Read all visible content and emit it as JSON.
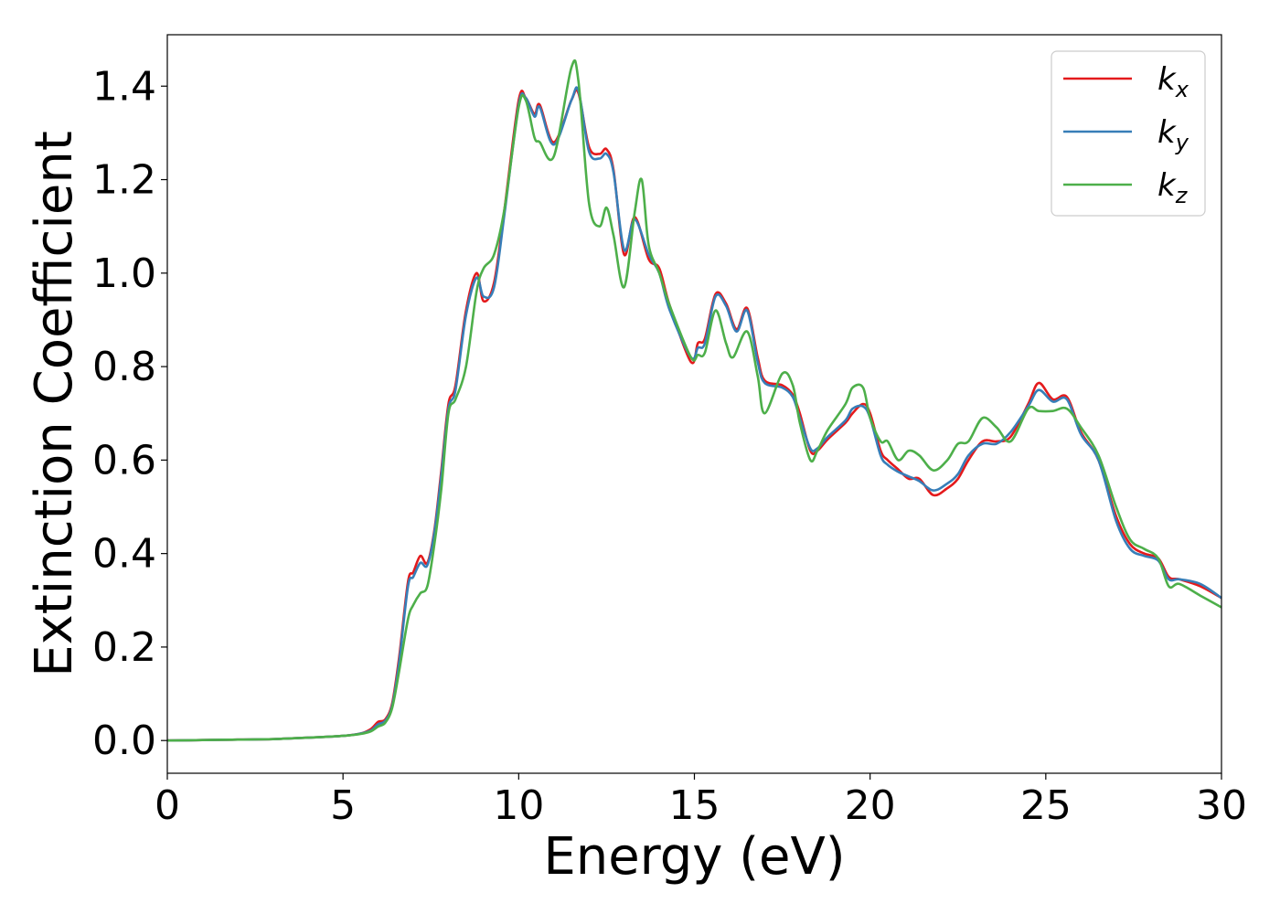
{
  "chart_data": {
    "type": "line",
    "title": "",
    "xlabel": "Energy (eV)",
    "ylabel": "Extinction Coefficient",
    "xlim": [
      0,
      30
    ],
    "ylim": [
      -0.07,
      1.51
    ],
    "x_ticks": [
      "0",
      "5",
      "10",
      "15",
      "20",
      "25",
      "30"
    ],
    "y_ticks": [
      "0.0",
      "0.2",
      "0.4",
      "0.6",
      "0.8",
      "1.0",
      "1.2",
      "1.4"
    ],
    "grid": false,
    "legend_position": "top-right",
    "series": [
      {
        "name": "k",
        "subscript": "x",
        "color": "#e41a1c",
        "points": [
          [
            0,
            0
          ],
          [
            1,
            0.001
          ],
          [
            2,
            0.002
          ],
          [
            3,
            0.003
          ],
          [
            4,
            0.006
          ],
          [
            5,
            0.01
          ],
          [
            5.5,
            0.015
          ],
          [
            5.8,
            0.025
          ],
          [
            6.0,
            0.04
          ],
          [
            6.2,
            0.045
          ],
          [
            6.4,
            0.08
          ],
          [
            6.6,
            0.18
          ],
          [
            6.85,
            0.34
          ],
          [
            7.0,
            0.36
          ],
          [
            7.2,
            0.395
          ],
          [
            7.4,
            0.38
          ],
          [
            7.6,
            0.45
          ],
          [
            7.8,
            0.58
          ],
          [
            8.0,
            0.72
          ],
          [
            8.2,
            0.76
          ],
          [
            8.5,
            0.92
          ],
          [
            8.8,
            1.0
          ],
          [
            9.0,
            0.94
          ],
          [
            9.3,
            0.98
          ],
          [
            9.6,
            1.14
          ],
          [
            10.0,
            1.37
          ],
          [
            10.2,
            1.375
          ],
          [
            10.45,
            1.34
          ],
          [
            10.6,
            1.36
          ],
          [
            11.0,
            1.28
          ],
          [
            11.5,
            1.37
          ],
          [
            11.7,
            1.385
          ],
          [
            12.0,
            1.27
          ],
          [
            12.3,
            1.255
          ],
          [
            12.5,
            1.265
          ],
          [
            12.7,
            1.22
          ],
          [
            13.0,
            1.04
          ],
          [
            13.3,
            1.12
          ],
          [
            13.7,
            1.03
          ],
          [
            14.0,
            1.01
          ],
          [
            14.3,
            0.93
          ],
          [
            14.9,
            0.81
          ],
          [
            15.1,
            0.85
          ],
          [
            15.3,
            0.86
          ],
          [
            15.6,
            0.955
          ],
          [
            15.9,
            0.935
          ],
          [
            16.2,
            0.88
          ],
          [
            16.5,
            0.925
          ],
          [
            16.8,
            0.82
          ],
          [
            17.0,
            0.77
          ],
          [
            17.5,
            0.76
          ],
          [
            17.8,
            0.74
          ],
          [
            18.0,
            0.7
          ],
          [
            18.3,
            0.62
          ],
          [
            18.5,
            0.62
          ],
          [
            18.8,
            0.645
          ],
          [
            19.3,
            0.68
          ],
          [
            19.5,
            0.7
          ],
          [
            19.8,
            0.72
          ],
          [
            20.0,
            0.7
          ],
          [
            20.3,
            0.62
          ],
          [
            20.5,
            0.6
          ],
          [
            20.8,
            0.58
          ],
          [
            21.1,
            0.56
          ],
          [
            21.4,
            0.56
          ],
          [
            21.8,
            0.525
          ],
          [
            22.2,
            0.54
          ],
          [
            22.5,
            0.56
          ],
          [
            22.8,
            0.6
          ],
          [
            23.2,
            0.64
          ],
          [
            23.6,
            0.64
          ],
          [
            24.0,
            0.65
          ],
          [
            24.5,
            0.72
          ],
          [
            24.8,
            0.765
          ],
          [
            25.2,
            0.73
          ],
          [
            25.6,
            0.735
          ],
          [
            26.0,
            0.66
          ],
          [
            26.5,
            0.6
          ],
          [
            27.0,
            0.48
          ],
          [
            27.4,
            0.42
          ],
          [
            27.8,
            0.4
          ],
          [
            28.2,
            0.39
          ],
          [
            28.5,
            0.35
          ],
          [
            28.8,
            0.345
          ],
          [
            29.4,
            0.33
          ],
          [
            30,
            0.305
          ]
        ]
      },
      {
        "name": "k",
        "subscript": "y",
        "color": "#377eb8",
        "points": [
          [
            0,
            0
          ],
          [
            1,
            0.001
          ],
          [
            2,
            0.002
          ],
          [
            3,
            0.003
          ],
          [
            4,
            0.006
          ],
          [
            5,
            0.01
          ],
          [
            5.5,
            0.015
          ],
          [
            5.8,
            0.022
          ],
          [
            6.0,
            0.035
          ],
          [
            6.2,
            0.042
          ],
          [
            6.4,
            0.075
          ],
          [
            6.6,
            0.17
          ],
          [
            6.85,
            0.33
          ],
          [
            7.0,
            0.35
          ],
          [
            7.2,
            0.38
          ],
          [
            7.4,
            0.375
          ],
          [
            7.6,
            0.445
          ],
          [
            7.8,
            0.57
          ],
          [
            8.0,
            0.71
          ],
          [
            8.2,
            0.75
          ],
          [
            8.5,
            0.91
          ],
          [
            8.8,
            0.99
          ],
          [
            9.0,
            0.95
          ],
          [
            9.3,
            0.97
          ],
          [
            9.6,
            1.13
          ],
          [
            10.0,
            1.36
          ],
          [
            10.2,
            1.375
          ],
          [
            10.45,
            1.335
          ],
          [
            10.6,
            1.355
          ],
          [
            11.0,
            1.275
          ],
          [
            11.5,
            1.37
          ],
          [
            11.7,
            1.39
          ],
          [
            12.0,
            1.26
          ],
          [
            12.3,
            1.245
          ],
          [
            12.5,
            1.255
          ],
          [
            12.7,
            1.215
          ],
          [
            13.0,
            1.05
          ],
          [
            13.3,
            1.115
          ],
          [
            13.7,
            1.04
          ],
          [
            14.0,
            1.0
          ],
          [
            14.3,
            0.92
          ],
          [
            14.9,
            0.82
          ],
          [
            15.1,
            0.84
          ],
          [
            15.3,
            0.85
          ],
          [
            15.6,
            0.95
          ],
          [
            15.9,
            0.93
          ],
          [
            16.2,
            0.875
          ],
          [
            16.5,
            0.92
          ],
          [
            16.8,
            0.81
          ],
          [
            17.0,
            0.765
          ],
          [
            17.5,
            0.755
          ],
          [
            17.8,
            0.735
          ],
          [
            18.0,
            0.69
          ],
          [
            18.3,
            0.625
          ],
          [
            18.5,
            0.625
          ],
          [
            18.8,
            0.65
          ],
          [
            19.3,
            0.685
          ],
          [
            19.5,
            0.71
          ],
          [
            19.8,
            0.715
          ],
          [
            20.0,
            0.69
          ],
          [
            20.3,
            0.61
          ],
          [
            20.5,
            0.59
          ],
          [
            20.8,
            0.575
          ],
          [
            21.1,
            0.565
          ],
          [
            21.4,
            0.555
          ],
          [
            21.8,
            0.535
          ],
          [
            22.2,
            0.55
          ],
          [
            22.5,
            0.57
          ],
          [
            22.8,
            0.61
          ],
          [
            23.2,
            0.635
          ],
          [
            23.6,
            0.635
          ],
          [
            24.0,
            0.66
          ],
          [
            24.5,
            0.715
          ],
          [
            24.8,
            0.75
          ],
          [
            25.2,
            0.725
          ],
          [
            25.6,
            0.73
          ],
          [
            26.0,
            0.655
          ],
          [
            26.5,
            0.6
          ],
          [
            27.0,
            0.47
          ],
          [
            27.4,
            0.41
          ],
          [
            27.8,
            0.395
          ],
          [
            28.2,
            0.385
          ],
          [
            28.5,
            0.345
          ],
          [
            28.8,
            0.345
          ],
          [
            29.4,
            0.335
          ],
          [
            30,
            0.305
          ]
        ]
      },
      {
        "name": "k",
        "subscript": "z",
        "color": "#4daf4a",
        "points": [
          [
            0,
            0
          ],
          [
            1,
            0.001
          ],
          [
            2,
            0.002
          ],
          [
            3,
            0.003
          ],
          [
            4,
            0.006
          ],
          [
            5,
            0.01
          ],
          [
            5.5,
            0.014
          ],
          [
            5.8,
            0.02
          ],
          [
            6.0,
            0.03
          ],
          [
            6.2,
            0.038
          ],
          [
            6.4,
            0.07
          ],
          [
            6.6,
            0.15
          ],
          [
            6.85,
            0.26
          ],
          [
            7.0,
            0.29
          ],
          [
            7.2,
            0.315
          ],
          [
            7.4,
            0.33
          ],
          [
            7.6,
            0.42
          ],
          [
            7.8,
            0.54
          ],
          [
            8.0,
            0.7
          ],
          [
            8.2,
            0.73
          ],
          [
            8.5,
            0.8
          ],
          [
            8.8,
            0.96
          ],
          [
            9.0,
            1.01
          ],
          [
            9.3,
            1.04
          ],
          [
            9.6,
            1.14
          ],
          [
            10.0,
            1.355
          ],
          [
            10.2,
            1.37
          ],
          [
            10.45,
            1.29
          ],
          [
            10.6,
            1.28
          ],
          [
            11.0,
            1.25
          ],
          [
            11.5,
            1.44
          ],
          [
            11.7,
            1.41
          ],
          [
            12.0,
            1.15
          ],
          [
            12.3,
            1.1
          ],
          [
            12.5,
            1.14
          ],
          [
            12.7,
            1.08
          ],
          [
            13.0,
            0.97
          ],
          [
            13.3,
            1.13
          ],
          [
            13.5,
            1.2
          ],
          [
            13.7,
            1.06
          ],
          [
            14.0,
            1.0
          ],
          [
            14.3,
            0.93
          ],
          [
            14.9,
            0.82
          ],
          [
            15.1,
            0.825
          ],
          [
            15.3,
            0.83
          ],
          [
            15.6,
            0.92
          ],
          [
            15.9,
            0.85
          ],
          [
            16.1,
            0.82
          ],
          [
            16.5,
            0.875
          ],
          [
            16.8,
            0.78
          ],
          [
            17.0,
            0.7
          ],
          [
            17.5,
            0.785
          ],
          [
            17.8,
            0.76
          ],
          [
            18.0,
            0.68
          ],
          [
            18.3,
            0.6
          ],
          [
            18.5,
            0.62
          ],
          [
            18.8,
            0.665
          ],
          [
            19.3,
            0.72
          ],
          [
            19.5,
            0.755
          ],
          [
            19.8,
            0.755
          ],
          [
            20.0,
            0.69
          ],
          [
            20.3,
            0.64
          ],
          [
            20.5,
            0.64
          ],
          [
            20.8,
            0.6
          ],
          [
            21.1,
            0.62
          ],
          [
            21.4,
            0.61
          ],
          [
            21.8,
            0.578
          ],
          [
            22.2,
            0.6
          ],
          [
            22.5,
            0.635
          ],
          [
            22.8,
            0.64
          ],
          [
            23.2,
            0.69
          ],
          [
            23.6,
            0.67
          ],
          [
            24.0,
            0.64
          ],
          [
            24.5,
            0.71
          ],
          [
            24.8,
            0.705
          ],
          [
            25.2,
            0.705
          ],
          [
            25.6,
            0.71
          ],
          [
            26.0,
            0.67
          ],
          [
            26.5,
            0.61
          ],
          [
            27.0,
            0.5
          ],
          [
            27.4,
            0.43
          ],
          [
            27.8,
            0.41
          ],
          [
            28.2,
            0.39
          ],
          [
            28.5,
            0.33
          ],
          [
            28.8,
            0.335
          ],
          [
            29.4,
            0.31
          ],
          [
            30,
            0.285
          ]
        ]
      }
    ]
  }
}
